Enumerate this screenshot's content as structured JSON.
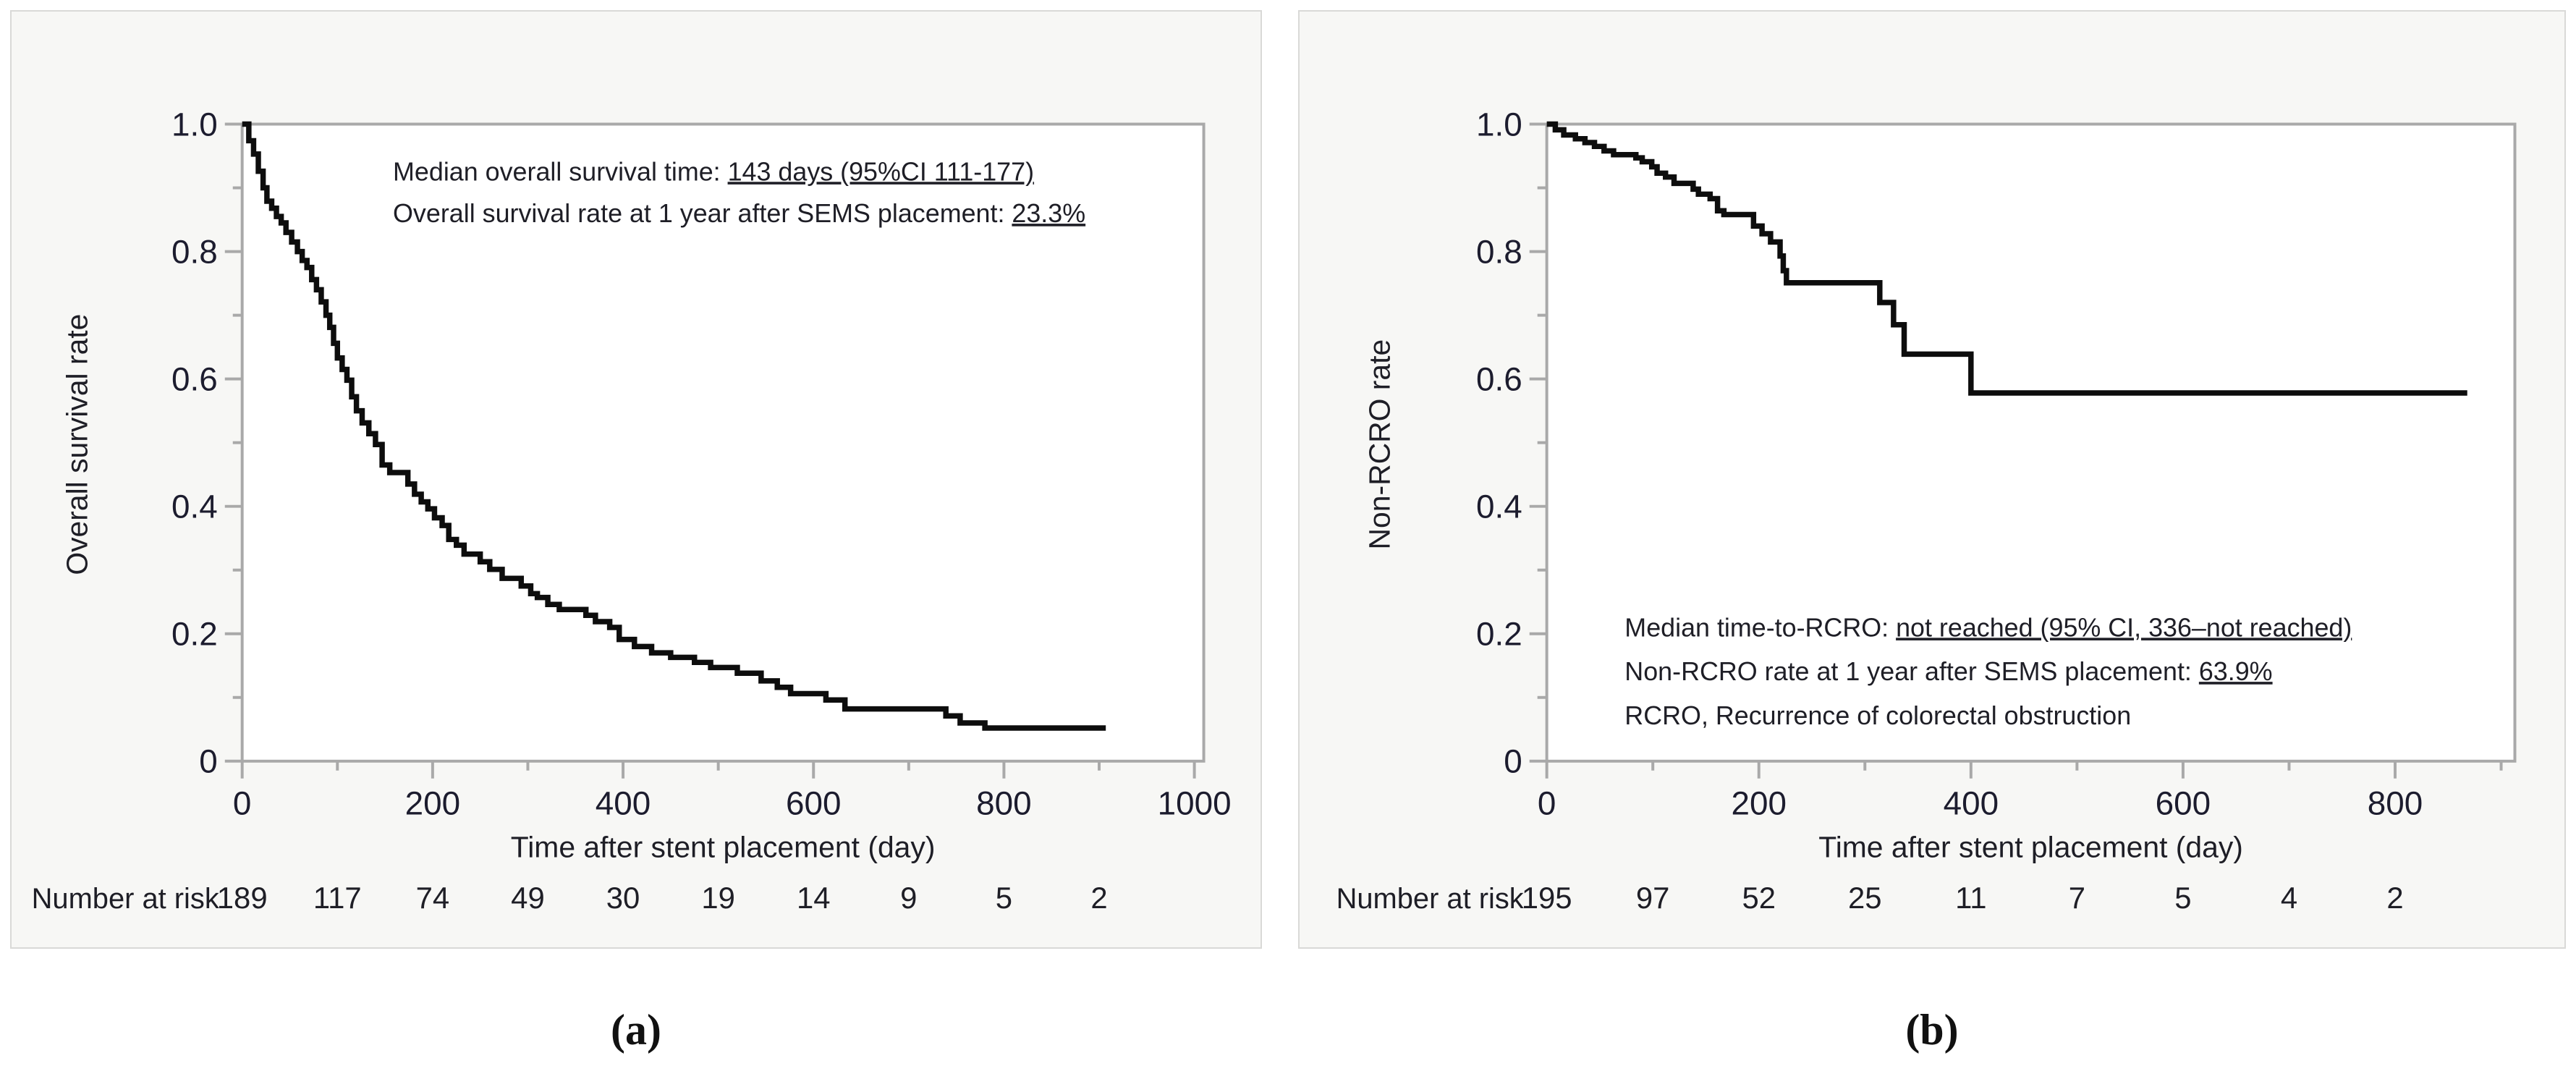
{
  "figure": {
    "captions": [
      "(a)",
      "(b)"
    ],
    "colors": {
      "panel_background": "#f7f7f5",
      "panel_border": "#d9d9d7",
      "plot_background": "#ffffff",
      "axis": "#a9a9a9",
      "curve": "#0d0d0d",
      "text": "#1e1e26",
      "tick_text": "#1c1c2e"
    }
  },
  "chart_data": [
    {
      "type": "line",
      "subtype": "kaplan-meier-step",
      "title": "",
      "xlabel": "Time after stent placement (day)",
      "ylabel": "Overall survival rate",
      "xlim": [
        0,
        1010
      ],
      "ylim": [
        0,
        1.0
      ],
      "grid": false,
      "legend_position": "none",
      "x_major_ticks": [
        0,
        200,
        400,
        600,
        800,
        1000
      ],
      "x_minor_step": 100,
      "x_minor_max": 1000,
      "y_major_ticks": [
        1.0,
        0.8,
        0.6,
        0.4,
        0.2,
        0
      ],
      "y_tick_labels": [
        "1.0",
        "0.8",
        "0.6",
        "0.4",
        "0.2",
        "0"
      ],
      "y_minor_ticks": [
        0.9,
        0.7,
        0.5,
        0.3,
        0.1
      ],
      "annotations": [
        {
          "prefix": "Median overall survival time: ",
          "underlined": "143 days (95%CI 111-177)"
        },
        {
          "prefix": "Overall survival rate at 1 year after SEMS placement: ",
          "underlined": "23.3%"
        }
      ],
      "number_at_risk": {
        "label": "Number at risk",
        "interval_days": 100,
        "values": [
          189,
          117,
          74,
          49,
          30,
          19,
          14,
          9,
          5,
          2
        ]
      },
      "series": [
        {
          "name": "Overall survival",
          "points": [
            [
              0,
              1.0
            ],
            [
              7,
              0.974
            ],
            [
              12,
              0.953
            ],
            [
              17,
              0.926
            ],
            [
              22,
              0.9
            ],
            [
              26,
              0.879
            ],
            [
              31,
              0.868
            ],
            [
              36,
              0.855
            ],
            [
              41,
              0.845
            ],
            [
              46,
              0.83
            ],
            [
              52,
              0.815
            ],
            [
              58,
              0.8
            ],
            [
              63,
              0.786
            ],
            [
              68,
              0.775
            ],
            [
              73,
              0.756
            ],
            [
              78,
              0.74
            ],
            [
              83,
              0.721
            ],
            [
              88,
              0.7
            ],
            [
              92,
              0.681
            ],
            [
              96,
              0.656
            ],
            [
              100,
              0.633
            ],
            [
              105,
              0.615
            ],
            [
              110,
              0.598
            ],
            [
              115,
              0.572
            ],
            [
              120,
              0.55
            ],
            [
              126,
              0.531
            ],
            [
              133,
              0.514
            ],
            [
              140,
              0.497
            ],
            [
              147,
              0.465
            ],
            [
              155,
              0.453
            ],
            [
              174,
              0.435
            ],
            [
              181,
              0.419
            ],
            [
              188,
              0.407
            ],
            [
              195,
              0.396
            ],
            [
              202,
              0.382
            ],
            [
              210,
              0.37
            ],
            [
              217,
              0.348
            ],
            [
              225,
              0.339
            ],
            [
              233,
              0.325
            ],
            [
              250,
              0.313
            ],
            [
              260,
              0.301
            ],
            [
              273,
              0.287
            ],
            [
              293,
              0.275
            ],
            [
              303,
              0.263
            ],
            [
              310,
              0.257
            ],
            [
              321,
              0.246
            ],
            [
              333,
              0.238
            ],
            [
              361,
              0.229
            ],
            [
              371,
              0.219
            ],
            [
              386,
              0.21
            ],
            [
              396,
              0.191
            ],
            [
              412,
              0.18
            ],
            [
              430,
              0.17
            ],
            [
              450,
              0.163
            ],
            [
              475,
              0.155
            ],
            [
              492,
              0.147
            ],
            [
              520,
              0.138
            ],
            [
              545,
              0.126
            ],
            [
              562,
              0.116
            ],
            [
              576,
              0.106
            ],
            [
              613,
              0.096
            ],
            [
              633,
              0.082
            ],
            [
              739,
              0.071
            ],
            [
              754,
              0.06
            ],
            [
              780,
              0.052
            ],
            [
              907,
              0.052
            ]
          ]
        }
      ]
    },
    {
      "type": "line",
      "subtype": "kaplan-meier-step",
      "title": "",
      "xlabel": "Time after stent placement (day)",
      "ylabel": "Non-RCRO rate",
      "xlim": [
        0,
        913
      ],
      "ylim": [
        0,
        1.0
      ],
      "grid": false,
      "legend_position": "none",
      "x_major_ticks": [
        0,
        200,
        400,
        600,
        800
      ],
      "x_minor_step": 100,
      "x_minor_max": 900,
      "y_major_ticks": [
        1.0,
        0.8,
        0.6,
        0.4,
        0.2,
        0
      ],
      "y_tick_labels": [
        "1.0",
        "0.8",
        "0.6",
        "0.4",
        "0.2",
        "0"
      ],
      "y_minor_ticks": [
        0.9,
        0.7,
        0.5,
        0.3,
        0.1
      ],
      "annotations": [
        {
          "prefix": "Median time-to-RCRO: ",
          "underlined": "not reached (95% CI, 336–not reached)"
        },
        {
          "prefix": "Non-RCRO rate at 1 year after SEMS placement: ",
          "underlined": "63.9%"
        },
        {
          "prefix": "RCRO, Recurrence of colorectal obstruction",
          "underlined": ""
        }
      ],
      "number_at_risk": {
        "label": "Number at risk",
        "interval_days": 100,
        "values": [
          195,
          97,
          52,
          25,
          11,
          7,
          5,
          4,
          2
        ]
      },
      "series": [
        {
          "name": "Non-RCRO",
          "points": [
            [
              0,
              1.0
            ],
            [
              8,
              0.991
            ],
            [
              16,
              0.983
            ],
            [
              27,
              0.977
            ],
            [
              36,
              0.971
            ],
            [
              45,
              0.965
            ],
            [
              54,
              0.958
            ],
            [
              63,
              0.952
            ],
            [
              84,
              0.947
            ],
            [
              90,
              0.941
            ],
            [
              99,
              0.933
            ],
            [
              104,
              0.923
            ],
            [
              112,
              0.917
            ],
            [
              120,
              0.907
            ],
            [
              138,
              0.898
            ],
            [
              143,
              0.89
            ],
            [
              154,
              0.883
            ],
            [
              161,
              0.864
            ],
            [
              167,
              0.858
            ],
            [
              195,
              0.84
            ],
            [
              203,
              0.828
            ],
            [
              211,
              0.815
            ],
            [
              220,
              0.793
            ],
            [
              223,
              0.77
            ],
            [
              226,
              0.751
            ],
            [
              314,
              0.72
            ],
            [
              327,
              0.685
            ],
            [
              337,
              0.639
            ],
            [
              400,
              0.578
            ],
            [
              868,
              0.578
            ]
          ]
        }
      ]
    }
  ]
}
